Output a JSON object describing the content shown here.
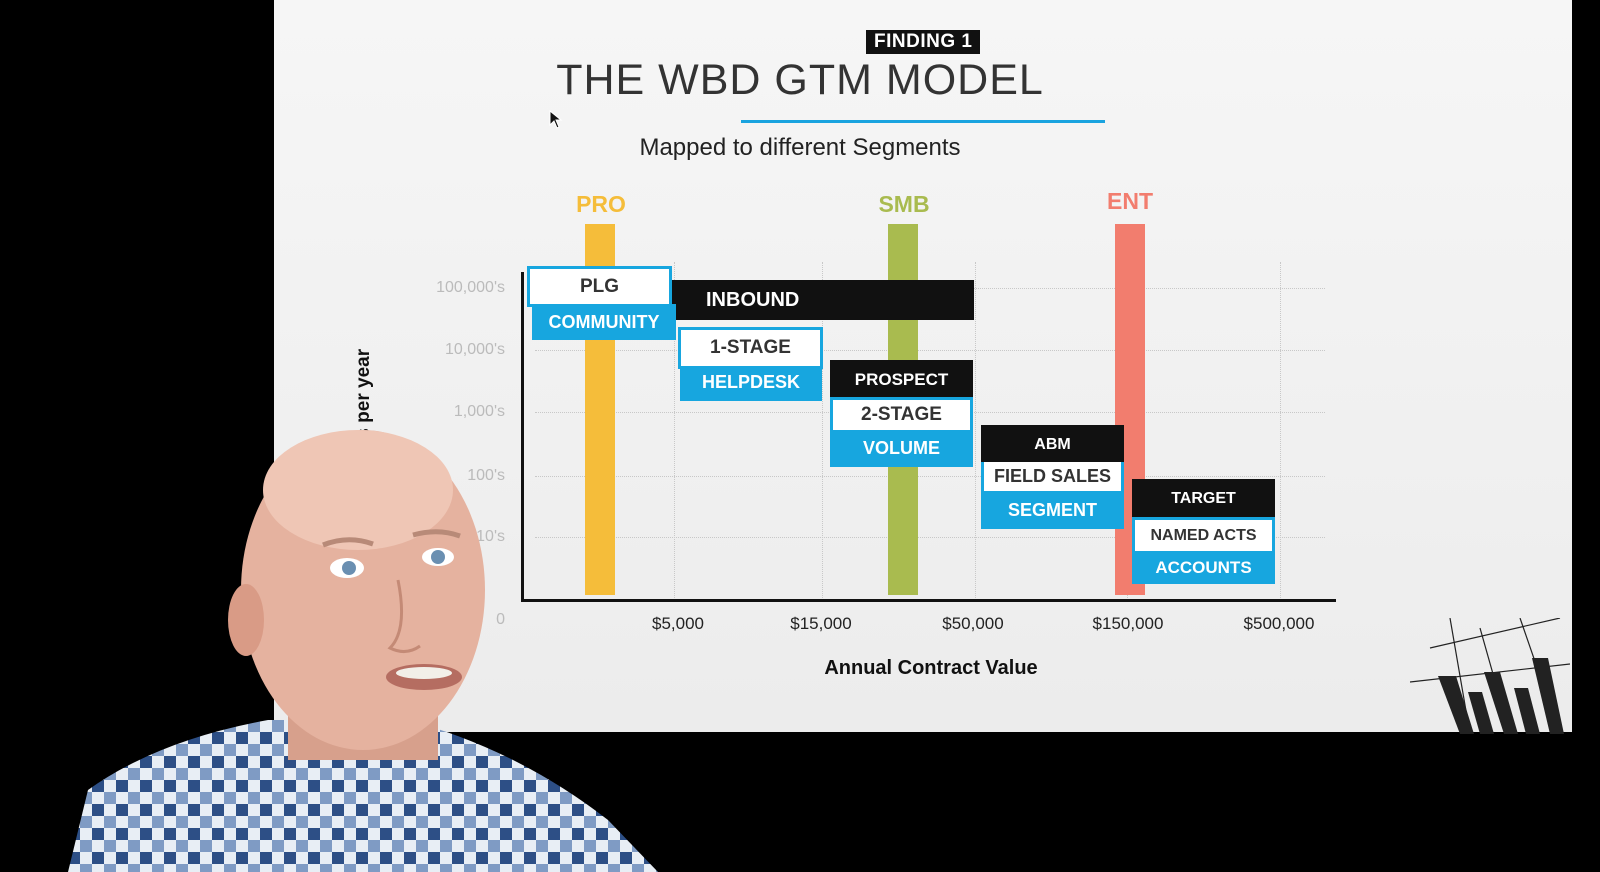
{
  "slide": {
    "badge": "FINDING 1",
    "title": "THE WBD GTM MODEL",
    "subtitle": "Mapped to different Segments"
  },
  "segments": [
    {
      "label": "PRO",
      "color": "#f5bd3a"
    },
    {
      "label": "SMB",
      "color": "#a9bb4f"
    },
    {
      "label": "ENT",
      "color": "#f27d6e"
    }
  ],
  "axes": {
    "y_title": "eals per year",
    "y_ticks": [
      "100,000's",
      "10,000's",
      "1,000's",
      "100's",
      "10's",
      "0"
    ],
    "x_ticks": [
      "$5,000",
      "$15,000",
      "$50,000",
      "$150,000",
      "$500,000"
    ],
    "x_title": "Annual Contract Value"
  },
  "boxes": {
    "plg": "PLG",
    "community": "COMMUNITY",
    "inbound": "INBOUND",
    "one_stage": "1-STAGE",
    "helpdesk": "HELPDESK",
    "prospect": "PROSPECT",
    "two_stage": "2-STAGE",
    "volume": "VOLUME",
    "abm": "ABM",
    "field_sales": "FIELD SALES",
    "segment": "SEGMENT",
    "target": "TARGET",
    "named_acts": "NAMED ACTS",
    "accounts": "ACCOUNTS"
  },
  "colors": {
    "accent_blue": "#17a6df",
    "black": "#111111"
  }
}
